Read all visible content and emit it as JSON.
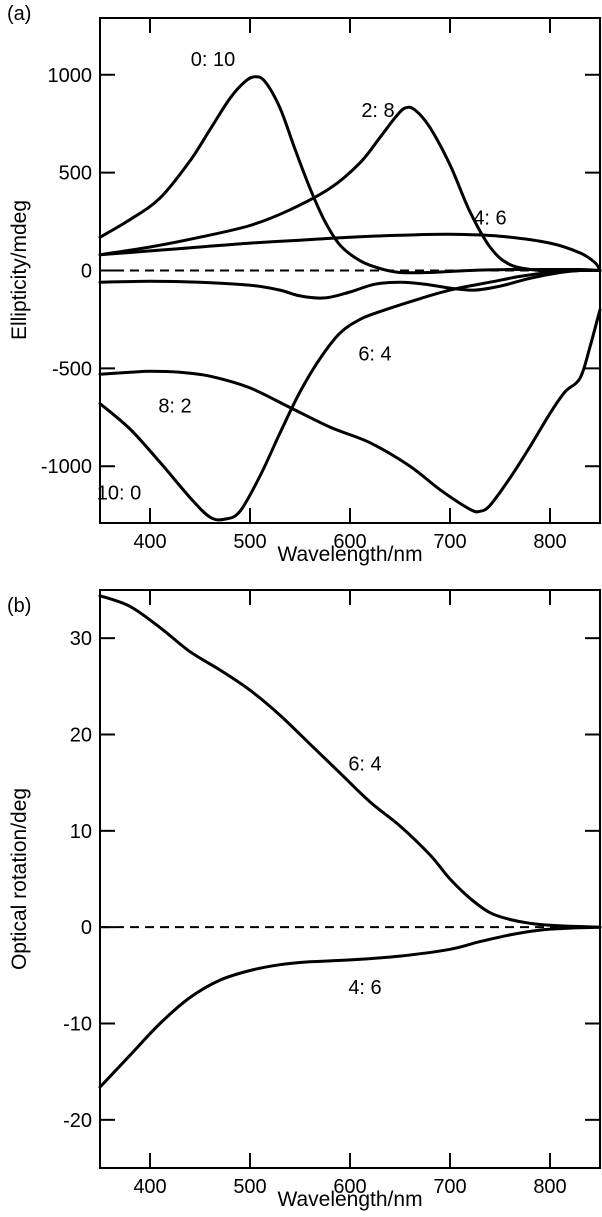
{
  "chart_data": [
    {
      "panel_label": "(a)",
      "type": "line",
      "xlabel": "Wavelength/nm",
      "ylabel": "Ellipticity/mdeg",
      "xlim": [
        350,
        850
      ],
      "ylim": [
        -1290,
        1290
      ],
      "xticks": [
        400,
        500,
        600,
        700,
        800
      ],
      "yticks": [
        1000,
        500,
        0,
        -500,
        -1000
      ],
      "zero_line": "dashed",
      "series": [
        {
          "name": "0: 10",
          "x": [
            350,
            380,
            410,
            440,
            460,
            480,
            495,
            505,
            515,
            530,
            545,
            560,
            575,
            590,
            610,
            630,
            650,
            680,
            720,
            760,
            800,
            830,
            850
          ],
          "y": [
            170,
            260,
            370,
            560,
            720,
            880,
            965,
            990,
            965,
            830,
            620,
            420,
            250,
            130,
            50,
            10,
            -10,
            -10,
            0,
            5,
            5,
            5,
            0
          ]
        },
        {
          "name": "2: 8",
          "x": [
            350,
            400,
            450,
            500,
            540,
            580,
            610,
            630,
            645,
            655,
            665,
            680,
            700,
            720,
            740,
            760,
            790,
            820,
            850
          ],
          "y": [
            80,
            120,
            170,
            230,
            310,
            420,
            550,
            680,
            780,
            830,
            820,
            730,
            540,
            300,
            120,
            30,
            0,
            0,
            0
          ]
        },
        {
          "name": "4: 6",
          "x": [
            350,
            400,
            450,
            500,
            550,
            600,
            650,
            700,
            750,
            800,
            830,
            845,
            850
          ],
          "y": [
            80,
            100,
            120,
            140,
            155,
            170,
            180,
            185,
            175,
            140,
            90,
            40,
            0
          ]
        },
        {
          "name": "6: 4",
          "x": [
            350,
            400,
            450,
            500,
            530,
            550,
            575,
            600,
            625,
            650,
            675,
            700,
            725,
            750,
            780,
            810,
            830,
            850
          ],
          "y": [
            -60,
            -55,
            -60,
            -75,
            -100,
            -130,
            -140,
            -110,
            -70,
            -60,
            -70,
            -90,
            -100,
            -80,
            -40,
            -10,
            0,
            0
          ]
        },
        {
          "name": "8: 2",
          "x": [
            350,
            380,
            400,
            430,
            460,
            500,
            540,
            580,
            620,
            660,
            690,
            720,
            730,
            740,
            760,
            780,
            800,
            815,
            830,
            840,
            850
          ],
          "y": [
            -530,
            -520,
            -515,
            -520,
            -540,
            -600,
            -700,
            -800,
            -880,
            -1000,
            -1120,
            -1220,
            -1230,
            -1200,
            -1060,
            -900,
            -730,
            -620,
            -550,
            -390,
            -200
          ]
        },
        {
          "name": "10: 0",
          "x": [
            350,
            380,
            410,
            440,
            460,
            475,
            490,
            510,
            530,
            550,
            570,
            590,
            610,
            630,
            660,
            700,
            740,
            770,
            800,
            830,
            850
          ],
          "y": [
            -680,
            -810,
            -980,
            -1160,
            -1260,
            -1270,
            -1230,
            -1050,
            -830,
            -620,
            -450,
            -320,
            -250,
            -210,
            -160,
            -100,
            -60,
            -30,
            -10,
            0,
            0
          ]
        }
      ],
      "annotations": [
        {
          "text": "0: 10",
          "x": 463,
          "y": 1080
        },
        {
          "text": "2: 8",
          "x": 628,
          "y": 820
        },
        {
          "text": "4: 6",
          "x": 740,
          "y": 270
        },
        {
          "text": "6: 4",
          "x": 625,
          "y": -425
        },
        {
          "text": "8: 2",
          "x": 425,
          "y": -690
        },
        {
          "text": "10: 0",
          "x": 369,
          "y": -1135
        }
      ]
    },
    {
      "panel_label": "(b)",
      "type": "line",
      "xlabel": "Wavelength/nm",
      "ylabel": "Optical rotation/deg",
      "xlim": [
        350,
        850
      ],
      "ylim": [
        -25,
        35
      ],
      "xticks": [
        400,
        500,
        600,
        700,
        800
      ],
      "yticks": [
        30,
        20,
        10,
        0,
        -10,
        -20
      ],
      "zero_line": "dashed",
      "series": [
        {
          "name": "6: 4",
          "x": [
            350,
            380,
            410,
            440,
            470,
            500,
            530,
            560,
            590,
            620,
            650,
            680,
            700,
            720,
            740,
            760,
            780,
            800,
            820,
            850
          ],
          "y": [
            34.4,
            33.3,
            31.1,
            28.6,
            26.7,
            24.6,
            22,
            19,
            16,
            13,
            10.5,
            7.5,
            5,
            3,
            1.5,
            0.8,
            0.4,
            0.2,
            0.1,
            0
          ]
        },
        {
          "name": "4: 6",
          "x": [
            350,
            380,
            410,
            440,
            470,
            500,
            530,
            560,
            600,
            650,
            700,
            730,
            760,
            790,
            820,
            850
          ],
          "y": [
            -16.6,
            -13.3,
            -10,
            -7.3,
            -5.5,
            -4.5,
            -3.9,
            -3.6,
            -3.4,
            -3,
            -2.3,
            -1.5,
            -0.8,
            -0.3,
            -0.1,
            0
          ]
        }
      ],
      "annotations": [
        {
          "text": "6: 4",
          "x": 615,
          "y": 17
        },
        {
          "text": "4: 6",
          "x": 615,
          "y": -6.2
        }
      ]
    }
  ]
}
